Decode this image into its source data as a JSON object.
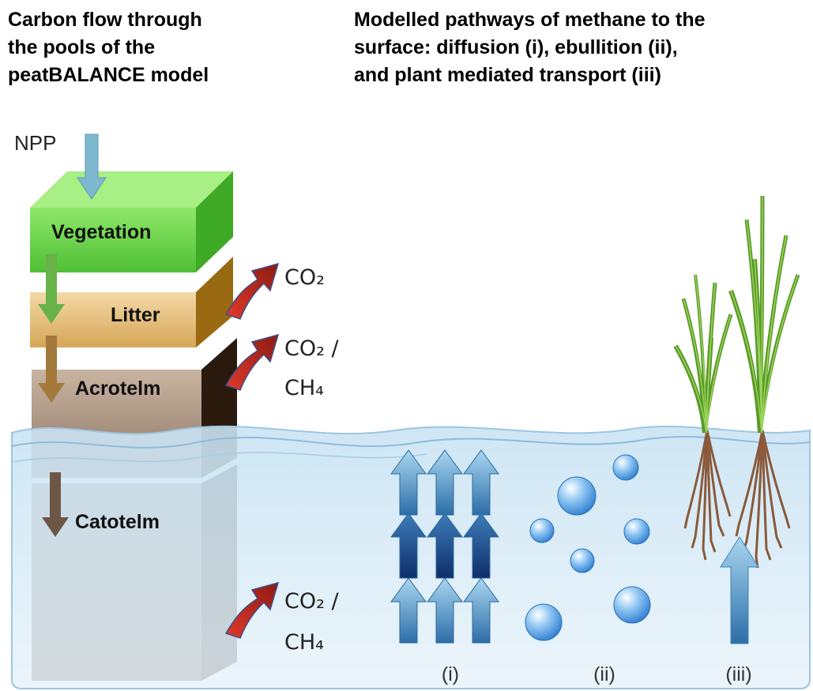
{
  "titles": {
    "left": [
      "Carbon flow through",
      "the pools of the",
      "peatBALANCE model"
    ],
    "right": [
      "Modelled pathways of methane to the",
      "surface: diffusion (i), ebullition (ii),",
      "and plant mediated transport (iii)"
    ]
  },
  "pools": {
    "input": "NPP",
    "vegetation": "Vegetation",
    "litter": "Litter",
    "acrotelm": "Acrotelm",
    "catotelm": "Catotelm"
  },
  "fluxes": [
    [
      "CO₂"
    ],
    [
      "CO₂ /",
      "CH₄"
    ],
    [
      "CO₂ /",
      "CH₄"
    ]
  ],
  "pathways": [
    "(i)",
    "(ii)",
    "(iii)"
  ]
}
